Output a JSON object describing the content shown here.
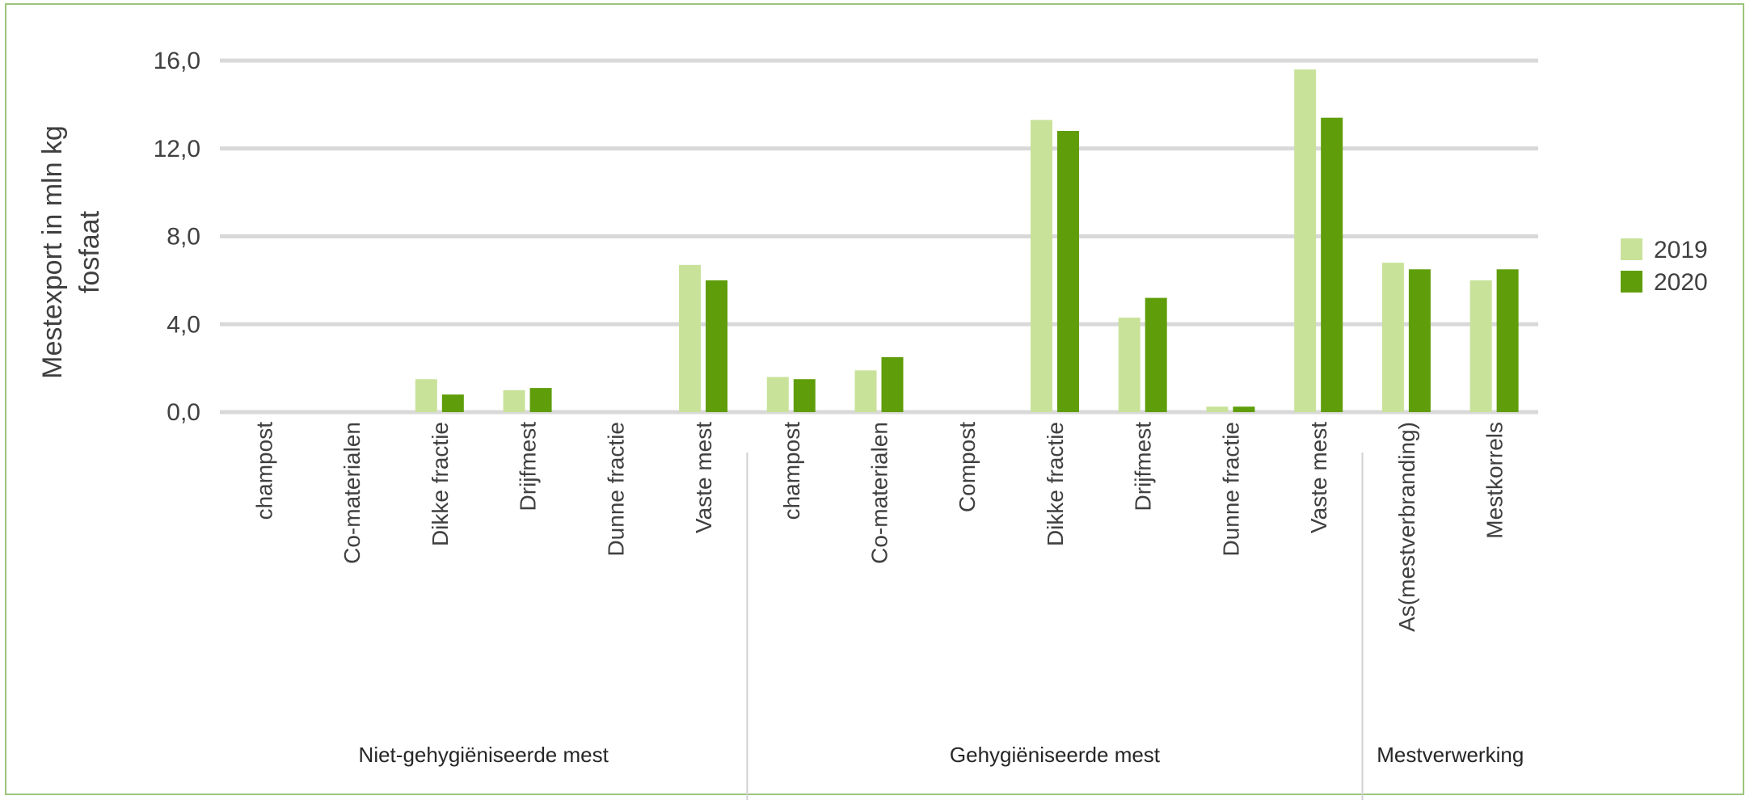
{
  "chart_data": {
    "type": "bar",
    "ylabel_lines": [
      "Mestexport in mln kg",
      "fosfaat"
    ],
    "ylim": [
      0,
      16
    ],
    "yticks": [
      "0,0",
      "4,0",
      "8,0",
      "12,0",
      "16,0"
    ],
    "grid": true,
    "legend_position": "right",
    "categories": [
      "champost",
      "Co-materialen",
      "Dikke fractie",
      "Drijfmest",
      "Dunne fractie",
      "Vaste mest",
      "champost",
      "Co-materialen",
      "Compost",
      "Dikke fractie",
      "Drijfmest",
      "Dunne fractie",
      "Vaste mest",
      "As(mestverbranding)",
      "Mestkorrels"
    ],
    "groups": [
      {
        "label": "Niet-gehygiëniseerde mest",
        "count": 6
      },
      {
        "label": "Gehygiëniseerde mest",
        "count": 7
      },
      {
        "label": "Mestverwerking",
        "count": 2
      }
    ],
    "series": [
      {
        "name": "2019",
        "color": "#c9e29a",
        "values": [
          0,
          0,
          1.5,
          1.0,
          0,
          6.7,
          1.6,
          1.9,
          0,
          13.3,
          4.3,
          0.25,
          15.6,
          6.8,
          6.0
        ]
      },
      {
        "name": "2020",
        "color": "#5f9e0a",
        "values": [
          0,
          0,
          0.8,
          1.1,
          0,
          6.0,
          1.5,
          2.5,
          0,
          12.8,
          5.2,
          0.25,
          13.4,
          6.5,
          6.5
        ]
      }
    ]
  }
}
